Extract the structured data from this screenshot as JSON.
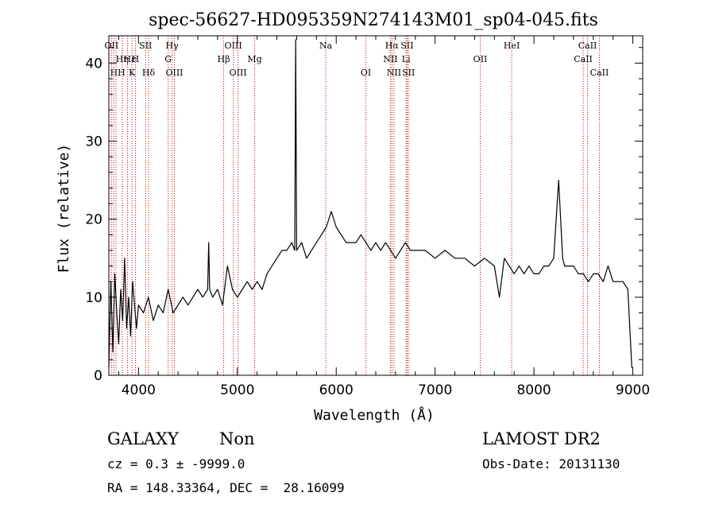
{
  "chart_data": {
    "type": "line",
    "title": "spec-56627-HD095359N274143M01_sp04-045.fits",
    "xlabel": "Wavelength (Å)",
    "ylabel": "Flux (relative)",
    "xlim": [
      3700,
      9100
    ],
    "ylim": [
      0,
      43.5
    ],
    "x_ticks": [
      4000,
      5000,
      6000,
      7000,
      8000,
      9000
    ],
    "y_ticks": [
      0,
      10,
      20,
      30,
      40
    ],
    "grid": false,
    "line_color": "#000000",
    "marker_line_color": "#cc0000",
    "series": [
      {
        "x": [
          3700,
          3720,
          3740,
          3760,
          3780,
          3800,
          3820,
          3840,
          3860,
          3880,
          3900,
          3920,
          3940,
          3960,
          3980,
          4000,
          4050,
          4100,
          4150,
          4200,
          4250,
          4300,
          4350,
          4400,
          4450,
          4500,
          4550,
          4600,
          4650,
          4700,
          4710,
          4720,
          4750,
          4800,
          4850,
          4900,
          4950,
          5000,
          5050,
          5100,
          5150,
          5200,
          5250,
          5300,
          5350,
          5400,
          5450,
          5500,
          5550,
          5580,
          5590,
          5600,
          5650,
          5700,
          5750,
          5800,
          5850,
          5900,
          5950,
          6000,
          6050,
          6100,
          6150,
          6200,
          6250,
          6300,
          6350,
          6400,
          6450,
          6500,
          6550,
          6600,
          6650,
          6700,
          6750,
          6800,
          6900,
          7000,
          7100,
          7200,
          7300,
          7400,
          7500,
          7600,
          7650,
          7700,
          7750,
          7800,
          7850,
          7900,
          7950,
          8000,
          8050,
          8100,
          8150,
          8200,
          8230,
          8250,
          8270,
          8290,
          8310,
          8350,
          8400,
          8450,
          8500,
          8550,
          8600,
          8650,
          8700,
          8750,
          8800,
          8850,
          8900,
          8950,
          8990,
          9000
        ],
        "y": [
          1,
          12,
          3,
          13,
          8,
          4,
          11,
          7,
          15,
          6,
          10,
          5,
          12,
          9,
          6,
          9,
          8,
          10,
          7,
          9,
          8,
          11,
          8,
          9,
          10,
          9,
          10,
          11,
          10,
          11,
          17,
          11,
          10,
          11,
          9,
          14,
          11,
          10,
          11,
          12,
          11,
          12,
          11,
          13,
          14,
          15,
          16,
          16,
          17,
          16,
          43,
          16,
          17,
          15,
          16,
          17,
          18,
          19,
          21,
          19,
          18,
          17,
          17,
          17,
          18,
          17,
          16,
          17,
          16,
          17,
          16,
          15,
          16,
          17,
          16,
          16,
          16,
          15,
          16,
          15,
          15,
          14,
          15,
          14,
          10,
          15,
          14,
          13,
          14,
          13,
          14,
          13,
          13,
          14,
          14,
          15,
          21,
          25,
          20,
          15,
          14,
          14,
          14,
          13,
          13,
          12,
          13,
          13,
          12,
          14,
          12,
          12,
          12,
          11,
          1,
          1
        ]
      }
    ],
    "line_markers": [
      {
        "wl": 3727,
        "label": "OII",
        "row": 0
      },
      {
        "wl": 3750,
        "label": "",
        "row": -1
      },
      {
        "wl": 3772,
        "label": "",
        "row": -1
      },
      {
        "wl": 3835,
        "label": "Hη",
        "row": 1
      },
      {
        "wl": 3889,
        "label": "",
        "row": -1
      },
      {
        "wl": 3934,
        "label": "K",
        "row": 2
      },
      {
        "wl": 3969,
        "label": "H",
        "row": 1
      },
      {
        "wl": 4072,
        "label": "SII",
        "row": 0
      },
      {
        "wl": 4102,
        "label": "Hδ",
        "row": 2
      },
      {
        "wl": 4300,
        "label": "G",
        "row": 1
      },
      {
        "wl": 4340,
        "label": "Hγ",
        "row": 0
      },
      {
        "wl": 4363,
        "label": "OIII",
        "row": 2
      },
      {
        "wl": 4861,
        "label": "Hβ",
        "row": 1
      },
      {
        "wl": 4959,
        "label": "OIII",
        "row": 0
      },
      {
        "wl": 5007,
        "label": "OIII",
        "row": 2
      },
      {
        "wl": 5175,
        "label": "Mg",
        "row": 1
      },
      {
        "wl": 5894,
        "label": "Na",
        "row": 0
      },
      {
        "wl": 6300,
        "label": "OI",
        "row": 2
      },
      {
        "wl": 6548,
        "label": "NII",
        "row": 1
      },
      {
        "wl": 6563,
        "label": "Hα",
        "row": 0
      },
      {
        "wl": 6584,
        "label": "NII",
        "row": 2
      },
      {
        "wl": 6707,
        "label": "Li",
        "row": 1
      },
      {
        "wl": 6717,
        "label": "SII",
        "row": 0
      },
      {
        "wl": 6731,
        "label": "SII",
        "row": 2
      },
      {
        "wl": 7457,
        "label": "OII",
        "row": 1
      },
      {
        "wl": 7775,
        "label": "HeI",
        "row": 0
      },
      {
        "wl": 8498,
        "label": "CaII",
        "row": 1
      },
      {
        "wl": 8542,
        "label": "CaII",
        "row": 0
      },
      {
        "wl": 8662,
        "label": "CaII",
        "row": 2
      }
    ],
    "extra_labels": [
      "Hε",
      "HH"
    ]
  },
  "info": {
    "object_class": "GALAXY",
    "subclass": "Non",
    "survey": "LAMOST DR2",
    "cz": "cz = 0.3 ± -9999.0",
    "obs_date": "Obs-Date: 20131130",
    "coords": "RA = 148.33364, DEC =  28.16099"
  }
}
